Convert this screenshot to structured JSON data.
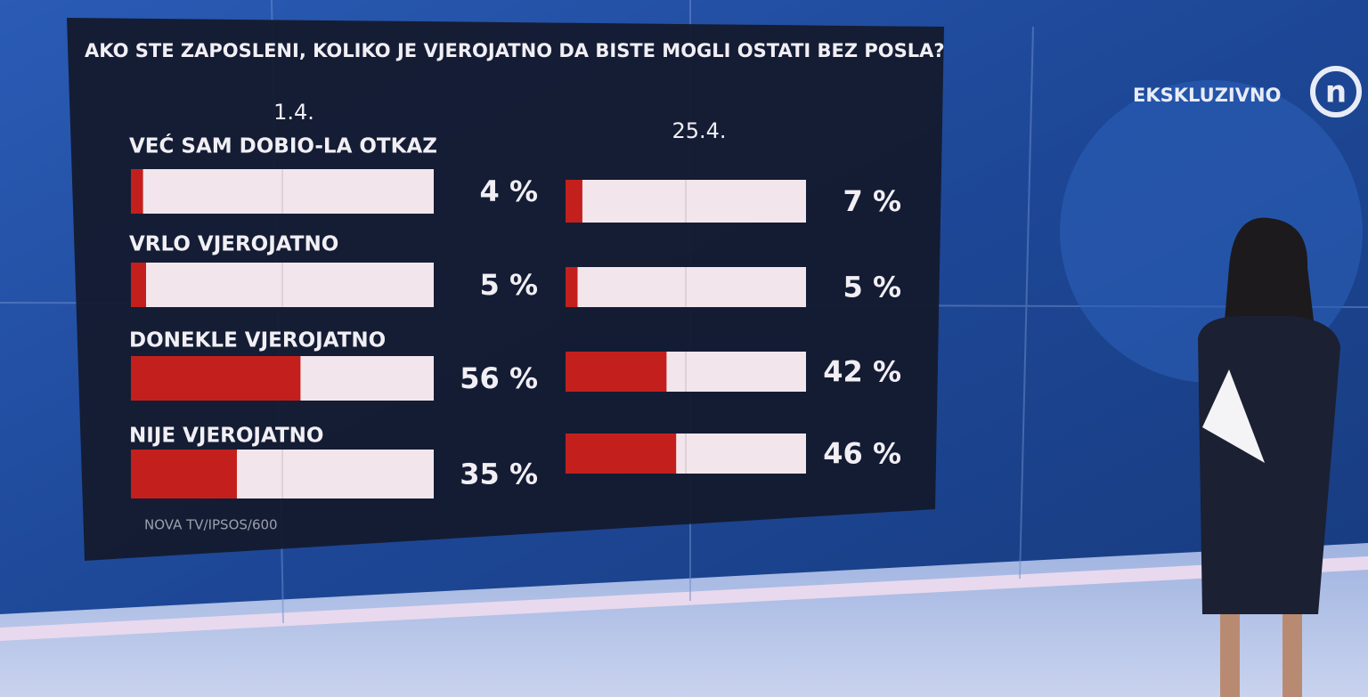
{
  "chart_data": {
    "type": "bar",
    "orientation": "horizontal",
    "title": "AKO STE ZAPOSLENI, KOLIKO JE VJEROJATNO DA BISTE MOGLI OSTATI BEZ POSLA?",
    "categories": [
      "VEĆ SAM DOBIO-LA OTKAZ",
      "VRLO VJEROJATNO",
      "DONEKLE VJEROJATNO",
      "NIJE VJEROJATNO"
    ],
    "series": [
      {
        "name": "1.4.",
        "color": "#c3201d",
        "values": [
          4,
          5,
          56,
          35
        ],
        "value_labels": [
          "4 %",
          "5 %",
          "56 %",
          "35 %"
        ]
      },
      {
        "name": "25.4.",
        "color": "#c3201d",
        "values": [
          7,
          5,
          42,
          46
        ],
        "value_labels": [
          "7 %",
          "5 %",
          "42 %",
          "46 %"
        ]
      }
    ],
    "xlim": [
      0,
      100
    ],
    "track_color": "#f2e6ec",
    "source": "NOVA TV/IPSOS/600"
  },
  "overlay": {
    "badge": "EKSKLUZIVNO"
  }
}
